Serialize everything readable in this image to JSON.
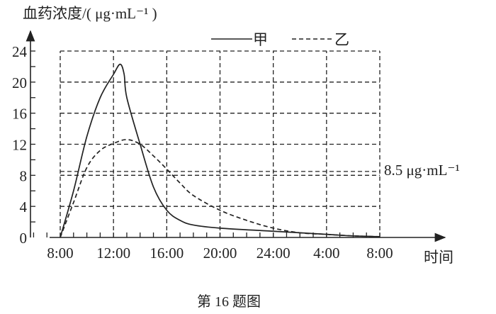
{
  "chart_data": {
    "type": "line",
    "title": "",
    "ylabel": "血药浓度/( μg·mL⁻¹ )",
    "xlabel": "时间",
    "caption": "第 16 题图",
    "x_tick_labels": [
      "8:00",
      "12:00",
      "16:00",
      "20:00",
      "24:00",
      "4:00",
      "8:00"
    ],
    "x_tick_hours": [
      0,
      4,
      8,
      12,
      16,
      20,
      24
    ],
    "xlim_hours": [
      0,
      24
    ],
    "y_ticks": [
      0,
      4,
      8,
      12,
      16,
      20,
      24
    ],
    "ylim": [
      0,
      24
    ],
    "grid": true,
    "reference_line": {
      "value": 8.5,
      "label": "8.5 μg·mL⁻¹"
    },
    "legend": {
      "placement": "top-right",
      "entries": [
        {
          "name": "甲",
          "style": "solid"
        },
        {
          "name": "乙",
          "style": "dashed"
        }
      ]
    },
    "series": [
      {
        "name": "甲",
        "style": "solid",
        "x": [
          0,
          1,
          2,
          3,
          4,
          4.5,
          4.8,
          5,
          6,
          7,
          8,
          9,
          10,
          12,
          16,
          20,
          22,
          24
        ],
        "y": [
          0,
          6,
          13,
          18,
          21,
          22.3,
          21,
          18,
          12,
          6.5,
          3.5,
          2.2,
          1.6,
          1.2,
          0.8,
          0.4,
          0.2,
          0.1
        ]
      },
      {
        "name": "乙",
        "style": "dashed",
        "x": [
          0,
          1,
          2,
          3,
          4,
          5,
          6,
          7,
          8,
          9,
          10,
          12,
          14,
          16,
          18,
          20,
          22,
          24
        ],
        "y": [
          0,
          4.5,
          9,
          11.2,
          12.1,
          12.6,
          12,
          10.5,
          8.8,
          7,
          5.4,
          3.5,
          2.2,
          1.2,
          0.6,
          0.4,
          0.2,
          0.1
        ]
      }
    ]
  }
}
